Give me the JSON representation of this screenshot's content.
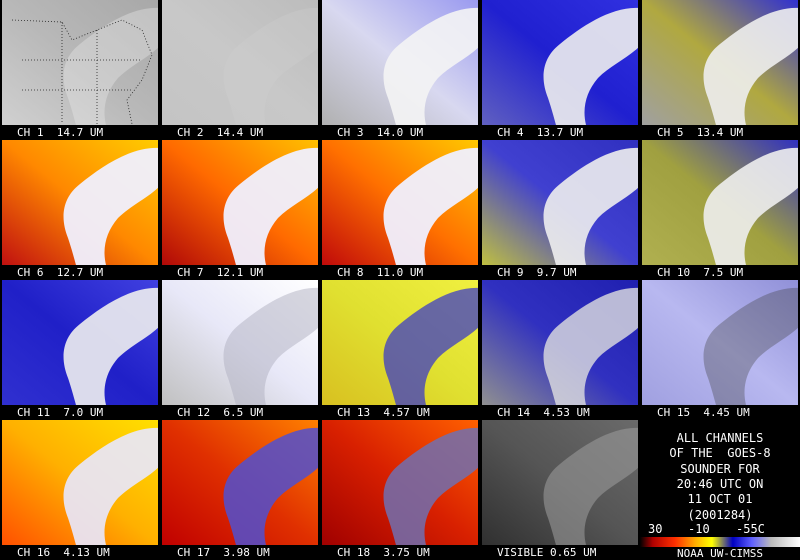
{
  "panels": [
    {
      "label": "CH 1  14.7 UM"
    },
    {
      "label": "CH 2  14.4 UM"
    },
    {
      "label": "CH 3  14.0 UM"
    },
    {
      "label": "CH 4  13.7 UM"
    },
    {
      "label": "CH 5  13.4 UM"
    },
    {
      "label": "CH 6  12.7 UM"
    },
    {
      "label": "CH 7  12.1 UM"
    },
    {
      "label": "CH 8  11.0 UM"
    },
    {
      "label": "CH 9  9.7 UM"
    },
    {
      "label": "CH 10  7.5 UM"
    },
    {
      "label": "CH 11  7.0 UM"
    },
    {
      "label": "CH 12  6.5 UM"
    },
    {
      "label": "CH 13  4.57 UM"
    },
    {
      "label": "CH 14  4.53 UM"
    },
    {
      "label": "CH 15  4.45 UM"
    },
    {
      "label": "CH 16  4.13 UM"
    },
    {
      "label": "CH 17  3.98 UM"
    },
    {
      "label": "CH 18  3.75 UM"
    },
    {
      "label": "VISIBLE 0.65 UM"
    }
  ],
  "info": {
    "lines": [
      "ALL CHANNELS",
      "OF THE  GOES-8",
      "SOUNDER FOR",
      "20:46 UTC ON",
      "11 OCT 01",
      "(2001284)"
    ]
  },
  "colorbar": {
    "labels": [
      "30",
      "-10",
      "-55C"
    ]
  },
  "credit": "NOAA UW-CIMSS"
}
